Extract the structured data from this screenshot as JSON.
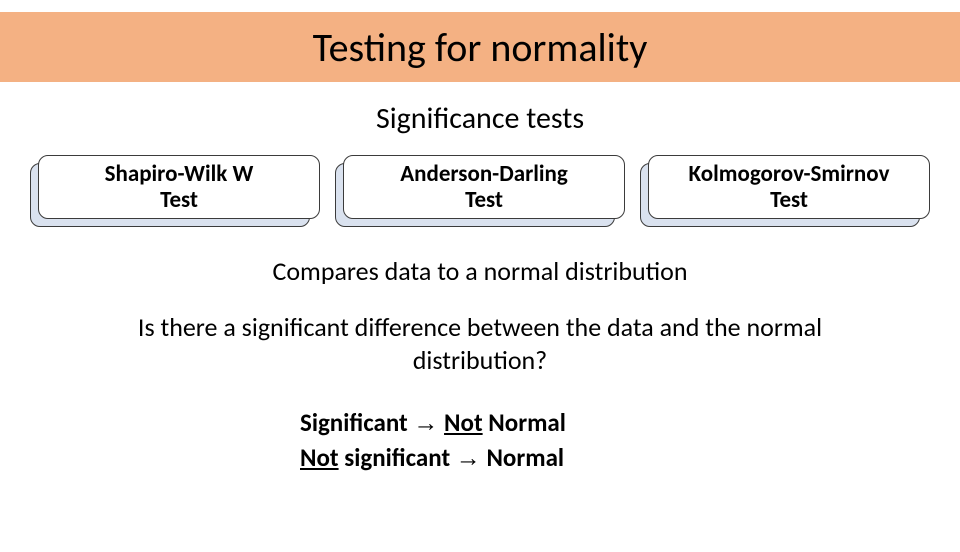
{
  "colors": {
    "title_band_bg": "#f4b183",
    "test_shadow_bg": "#dae2ef",
    "test_border": "#3b3b3b",
    "page_bg": "#ffffff",
    "text": "#000000"
  },
  "typography": {
    "title_fontsize": 40,
    "subtitle_fontsize": 30,
    "testlabel_fontsize": 23,
    "body_fontsize": 26,
    "outcome_fontsize": 25,
    "font_family": "Calibri"
  },
  "title": "Testing for normality",
  "subtitle": "Significance tests",
  "tests": [
    {
      "line1": "Shapiro-Wilk W",
      "line2": "Test"
    },
    {
      "line1": "Anderson-Darling",
      "line2": "Test"
    },
    {
      "line1": "Kolmogorov-Smirnov",
      "line2": "Test"
    }
  ],
  "compare_line": "Compares data to a normal distribution",
  "question": "Is there a significant difference between the data and the normal distribution?",
  "outcomes": {
    "sig_prefix": "Significant",
    "arrow": "→",
    "not_word": "Not",
    "normal_word": "Normal",
    "notsig_prefix": "Not",
    "significant_word": "significant"
  }
}
